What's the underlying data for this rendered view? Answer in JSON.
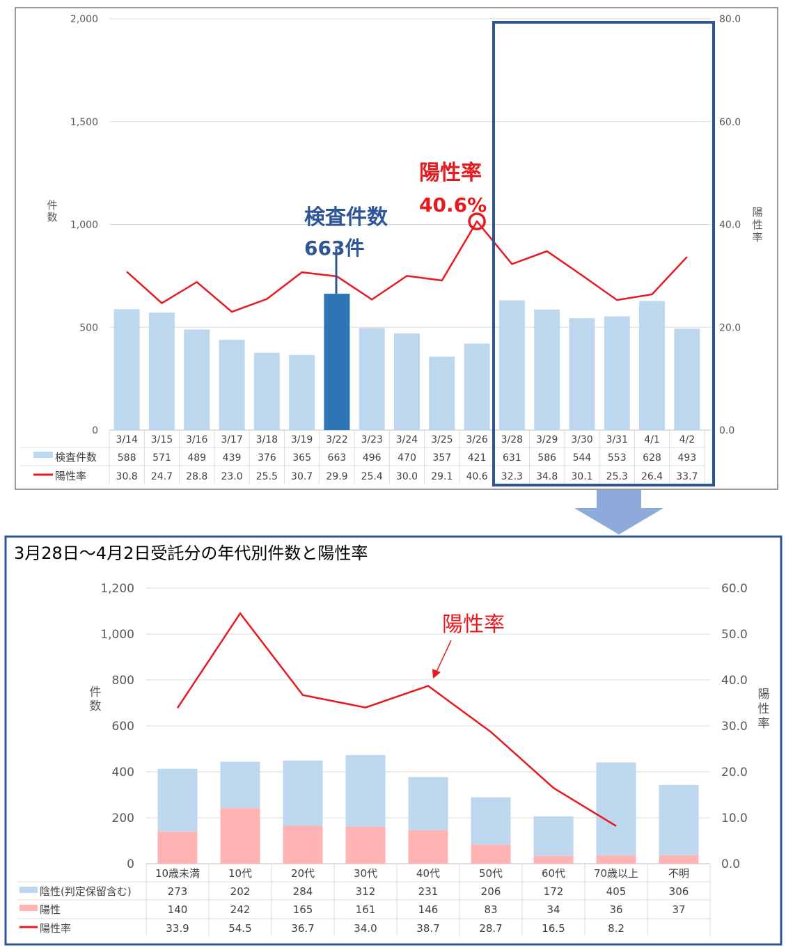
{
  "chart_data": [
    {
      "type": "bar",
      "categories": [
        "3/14",
        "3/15",
        "3/16",
        "3/17",
        "3/18",
        "3/19",
        "3/22",
        "3/23",
        "3/24",
        "3/25",
        "3/26",
        "3/28",
        "3/29",
        "3/30",
        "3/31",
        "4/1",
        "4/2"
      ],
      "series": [
        {
          "name": "検査件数",
          "type": "bar",
          "values": [
            588,
            571,
            489,
            439,
            376,
            365,
            663,
            496,
            470,
            357,
            421,
            631,
            586,
            544,
            553,
            628,
            493
          ]
        },
        {
          "name": "陽性率",
          "type": "line",
          "axis": "right",
          "values": [
            30.8,
            24.7,
            28.8,
            23.0,
            25.5,
            30.7,
            29.9,
            25.4,
            30.0,
            29.1,
            40.6,
            32.3,
            34.8,
            30.1,
            25.3,
            26.4,
            33.7
          ]
        }
      ],
      "ylabel": "件数",
      "y2label": "陽性率",
      "yticks": [
        "0",
        "500",
        "1,000",
        "1,500",
        "2,000"
      ],
      "y2ticks": [
        "0.0",
        "20.0",
        "40.0",
        "60.0",
        "80.0"
      ],
      "ylim": [
        0,
        2000
      ],
      "y2lim": [
        0,
        80
      ],
      "table_values_bar": [
        "588",
        "571",
        "489",
        "439",
        "376",
        "365",
        "663",
        "496",
        "470",
        "357",
        "421",
        "631",
        "586",
        "544",
        "553",
        "628",
        "493"
      ],
      "table_values_line": [
        "30.8",
        "24.7",
        "28.8",
        "23.0",
        "25.5",
        "30.7",
        "29.9",
        "25.4",
        "30.0",
        "29.1",
        "40.6",
        "32.3",
        "34.8",
        "30.1",
        "25.3",
        "26.4",
        "33.7"
      ],
      "highlight_bar_index": 6,
      "annotations": {
        "count_label": "検査件数",
        "count_value": "663件",
        "rate_label": "陽性率",
        "rate_value": "40.6%"
      },
      "highlight_range": [
        "3/28",
        "4/2"
      ],
      "grid": true,
      "colors": {
        "bar": "#bdd7ee",
        "bar_highlight": "#2e75b6",
        "line": "#e8191e",
        "frame": "#2f5597",
        "annotation_blue": "#2f5597",
        "annotation_red": "#e8191e"
      }
    },
    {
      "type": "bar",
      "title": "3月28日～4月2日受託分の年代別件数と陽性率",
      "categories": [
        "10歳未満",
        "10代",
        "20代",
        "30代",
        "40代",
        "50代",
        "60代",
        "70歳以上",
        "不明"
      ],
      "series": [
        {
          "name": "陰性(判定保留含む)",
          "type": "stacked-bar",
          "values": [
            273,
            202,
            284,
            312,
            231,
            206,
            172,
            405,
            306
          ]
        },
        {
          "name": "陽性",
          "type": "stacked-bar",
          "values": [
            140,
            242,
            165,
            161,
            146,
            83,
            34,
            36,
            37
          ]
        },
        {
          "name": "陽性率",
          "type": "line",
          "axis": "right",
          "values": [
            33.9,
            54.5,
            36.7,
            34.0,
            38.7,
            28.7,
            16.5,
            8.2,
            null
          ]
        }
      ],
      "ylabel": "件数",
      "y2label": "陽性率",
      "yticks": [
        "0",
        "200",
        "400",
        "600",
        "800",
        "1,000",
        "1,200"
      ],
      "y2ticks": [
        "0.0",
        "10.0",
        "20.0",
        "30.0",
        "40.0",
        "50.0",
        "60.0"
      ],
      "ylim": [
        0,
        1200
      ],
      "y2lim": [
        0,
        60
      ],
      "table_neg": [
        "273",
        "202",
        "284",
        "312",
        "231",
        "206",
        "172",
        "405",
        "306"
      ],
      "table_pos": [
        "140",
        "242",
        "165",
        "161",
        "146",
        "83",
        "34",
        "36",
        "37"
      ],
      "table_rate": [
        "33.9",
        "54.5",
        "36.7",
        "34.0",
        "38.7",
        "28.7",
        "16.5",
        "8.2",
        ""
      ],
      "annotations": {
        "rate_label": "陽性率"
      },
      "grid": true,
      "colors": {
        "neg": "#bdd7ee",
        "pos": "#ffb3b3",
        "line": "#e8191e",
        "frame": "#2f5597",
        "arrow": "#8eaadb"
      }
    }
  ]
}
